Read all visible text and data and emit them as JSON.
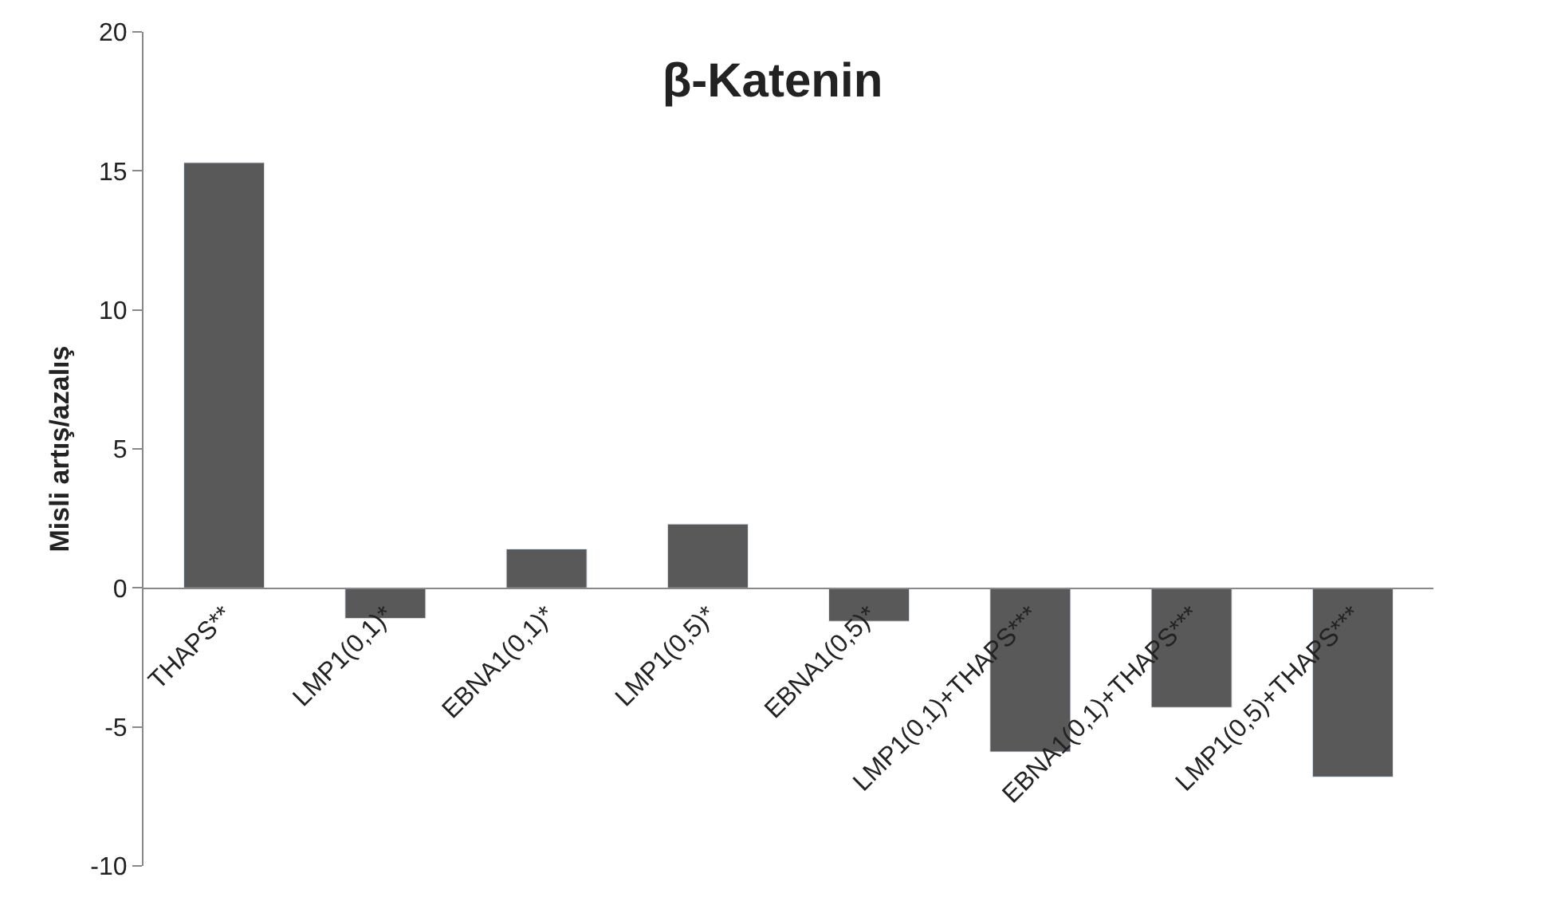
{
  "chart_data": {
    "type": "bar",
    "title": "β-Katenin",
    "ylabel": "Misli artış/azalış",
    "categories": [
      "THAPS**",
      "LMP1(0,1)*",
      "EBNA1(0,1)*",
      "LMP1(0,5)*",
      "EBNA1(0,5)*",
      "LMP1(0,1)+THAPS***",
      "EBNA1(0,1)+THAPS***",
      "LMP1(0,5)+THAPS***"
    ],
    "values": [
      15.3,
      -1.1,
      1.4,
      2.3,
      -1.2,
      -5.9,
      -4.3,
      -6.8
    ],
    "color": "#595959",
    "ylim": [
      -10,
      20
    ],
    "yticks": [
      -10,
      -5,
      0,
      5,
      10,
      15,
      20
    ]
  }
}
